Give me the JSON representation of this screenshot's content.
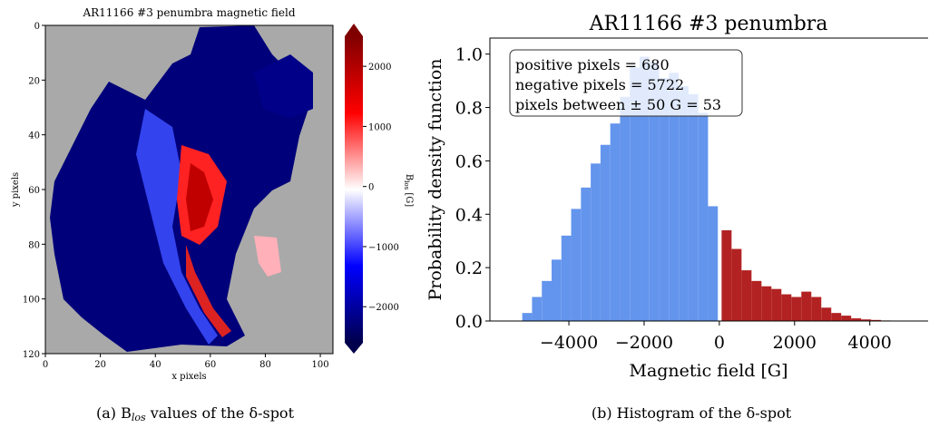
{
  "chart_data": [
    {
      "type": "image",
      "title": "AR11166 #3 penumbra magnetic field",
      "xlabel": "x pixels",
      "ylabel": "y pixels",
      "xlim": [
        0,
        104.6
      ],
      "ylim": [
        0,
        120
      ],
      "xticks": [
        0,
        20,
        40,
        60,
        80,
        100
      ],
      "yticks": [
        0,
        20,
        40,
        60,
        80,
        100,
        120
      ],
      "colorbar": {
        "label": "B",
        "label_sub": "los",
        "label_suffix": " [G]",
        "lim": [
          -2600,
          2500
        ],
        "ticks": [
          {
            "value": -2000,
            "label": "−2000"
          },
          {
            "value": -1000,
            "label": "−1000"
          },
          0,
          1000,
          2000
        ]
      },
      "caption": "(a) B",
      "caption_sub": "los",
      "caption_suffix": " values of the δ-spot"
    },
    {
      "type": "histogram",
      "title": "AR11166 #3 penumbra",
      "xlabel": "Magnetic field [G]",
      "ylabel": "Probability density function",
      "xlim": [
        -6100,
        5550
      ],
      "ylim": [
        0,
        1.06
      ],
      "xticks": [
        {
          "value": -4000,
          "label": "−4000"
        },
        {
          "value": -2000,
          "label": "−2000"
        },
        0,
        2000,
        4000
      ],
      "yticks": [
        {
          "value": 0,
          "label": "0.0"
        },
        0.2,
        0.4,
        0.6,
        0.8,
        {
          "value": 1,
          "label": "1.0"
        }
      ],
      "series": [
        {
          "color": "#6495ed",
          "bins": [
            -5240,
            -4980,
            -4720,
            -4460,
            -4200,
            -3940,
            -3680,
            -3420,
            -3160,
            -2900,
            -2640,
            -2380,
            -2120,
            -1860,
            -1600,
            -1340,
            -1080,
            -820,
            -560,
            -300,
            -40
          ],
          "values": [
            0.03,
            0.09,
            0.15,
            0.23,
            0.32,
            0.42,
            0.5,
            0.59,
            0.66,
            0.74,
            0.84,
            0.95,
            0.99,
            0.97,
            0.91,
            0.93,
            0.88,
            0.85,
            0.78,
            0.43
          ]
        },
        {
          "color": "#b22222",
          "bins": [
            60,
            325,
            590,
            855,
            1120,
            1385,
            1650,
            1915,
            2180,
            2445,
            2710,
            2975,
            3240,
            3505,
            3770,
            4035,
            4300,
            4565,
            4830
          ],
          "values": [
            0.34,
            0.27,
            0.19,
            0.15,
            0.13,
            0.12,
            0.1,
            0.09,
            0.11,
            0.09,
            0.05,
            0.03,
            0.02,
            0.01,
            0.006,
            0.004,
            0.002,
            0.001
          ]
        }
      ],
      "annotation": [
        "positive pixels = 680",
        "negative pixels = 5722",
        "pixels between ± 50 G = 53"
      ],
      "caption": "(b) Histogram of the δ-spot"
    }
  ]
}
